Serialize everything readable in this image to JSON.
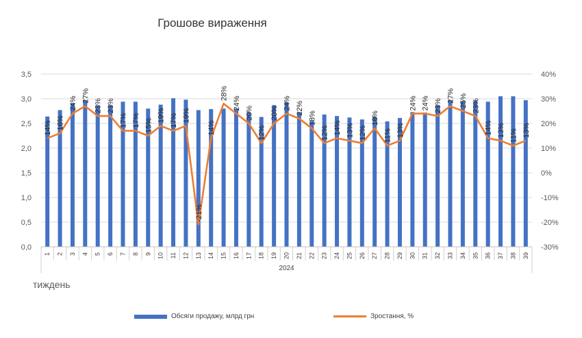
{
  "chart_data": {
    "type": "bar",
    "title": "Грошове вираження",
    "xlabel": "тиждень",
    "group_label": "2024",
    "categories": [
      "1",
      "2",
      "3",
      "4",
      "5",
      "6",
      "7",
      "8",
      "9",
      "10",
      "11",
      "12",
      "13",
      "14",
      "15",
      "16",
      "17",
      "18",
      "19",
      "20",
      "21",
      "22",
      "23",
      "24",
      "25",
      "26",
      "27",
      "28",
      "29",
      "30",
      "31",
      "32",
      "33",
      "34",
      "35",
      "36",
      "37",
      "38",
      "39"
    ],
    "y_left": {
      "min": 0.0,
      "max": 3.5,
      "step": 0.5,
      "tick_labels": [
        "0,0",
        "0,5",
        "1,0",
        "1,5",
        "2,0",
        "2,5",
        "3,0",
        "3,5"
      ]
    },
    "y_right": {
      "min": -30,
      "max": 40,
      "step": 10,
      "tick_labels": [
        "-30%",
        "-20%",
        "-10%",
        "0%",
        "10%",
        "20%",
        "30%",
        "40%"
      ]
    },
    "grid": true,
    "legend_position": "bottom",
    "series": [
      {
        "name": "Обсяги продажу, млрд грн",
        "kind": "bar",
        "axis": "left",
        "color": "#4472C4",
        "values": [
          2.64,
          2.77,
          2.91,
          2.97,
          2.86,
          2.87,
          2.94,
          2.94,
          2.8,
          2.88,
          3.01,
          2.98,
          2.77,
          2.79,
          2.8,
          2.8,
          2.73,
          2.63,
          2.87,
          2.93,
          2.73,
          2.55,
          2.68,
          2.65,
          2.62,
          2.58,
          2.64,
          2.54,
          2.61,
          2.73,
          2.72,
          2.87,
          2.97,
          2.95,
          2.96,
          2.94,
          3.05,
          3.05,
          2.97
        ]
      },
      {
        "name": "Зростання, %",
        "kind": "line",
        "axis": "right",
        "color": "#ED7D31",
        "values": [
          14,
          16,
          24,
          27,
          23,
          23,
          17,
          17,
          15,
          19,
          17,
          19,
          -21,
          14,
          28,
          24,
          20,
          12,
          20,
          24,
          22,
          18,
          12,
          14,
          13,
          12,
          18,
          11,
          13,
          24,
          24,
          23,
          27,
          25,
          23,
          14,
          13,
          11,
          13
        ],
        "data_labels": [
          "14%",
          "16%",
          "24%",
          "27%",
          "23%",
          "23%",
          "17%",
          "17%",
          "15%",
          "19%",
          "17%",
          "19%",
          "-21%",
          "14%",
          "28%",
          "24%",
          "20%",
          "12%",
          "20%",
          "24%",
          "22%",
          "18%",
          "12%",
          "14%",
          "13%",
          "12%",
          "18%",
          "11%",
          "13%",
          "24%",
          "24%",
          "23%",
          "27%",
          "25%",
          "23%",
          "14%",
          "13%",
          "11%",
          "13%"
        ]
      }
    ]
  }
}
